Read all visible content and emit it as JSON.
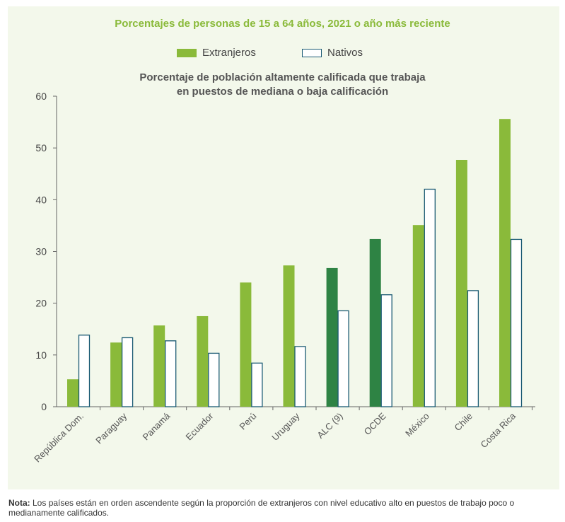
{
  "chart_data": {
    "type": "bar",
    "title": "Porcentajes de personas de 15 a 64 años, 2021 o año más reciente",
    "subtitle": "Porcentaje de población altamente calificada que trabaja en puestos de mediana o baja calificación",
    "categories": [
      "República Dom.",
      "Paraguay",
      "Panamá",
      "Ecuador",
      "Perú",
      "Uruguay",
      "ALC (9)",
      "OCDE",
      "México",
      "Chile",
      "Costa Rica"
    ],
    "series": [
      {
        "name": "Extranjeros",
        "values": [
          5.3,
          12.4,
          15.7,
          17.5,
          24.0,
          27.3,
          26.8,
          32.4,
          35.1,
          47.7,
          55.6
        ],
        "color": "#8aba3a",
        "highlight_color": "#2e8344",
        "highlight_categories": [
          "ALC (9)",
          "OCDE"
        ]
      },
      {
        "name": "Nativos",
        "values": [
          13.9,
          13.4,
          12.8,
          10.4,
          8.5,
          11.7,
          18.6,
          21.7,
          42.1,
          22.5,
          32.4
        ],
        "color": "#ffffff",
        "border_color": "#1a5a73"
      }
    ],
    "ylim": [
      0,
      60
    ],
    "yticks": [
      "0",
      "10",
      "20",
      "30",
      "40",
      "50",
      "60"
    ],
    "grid": false,
    "legend_position": "top"
  },
  "note": {
    "label": "Nota:",
    "text": " Los países están en orden ascendente según la proporción de extranjeros con nivel educativo alto en puestos de trabajo poco o medianamente calificados."
  }
}
